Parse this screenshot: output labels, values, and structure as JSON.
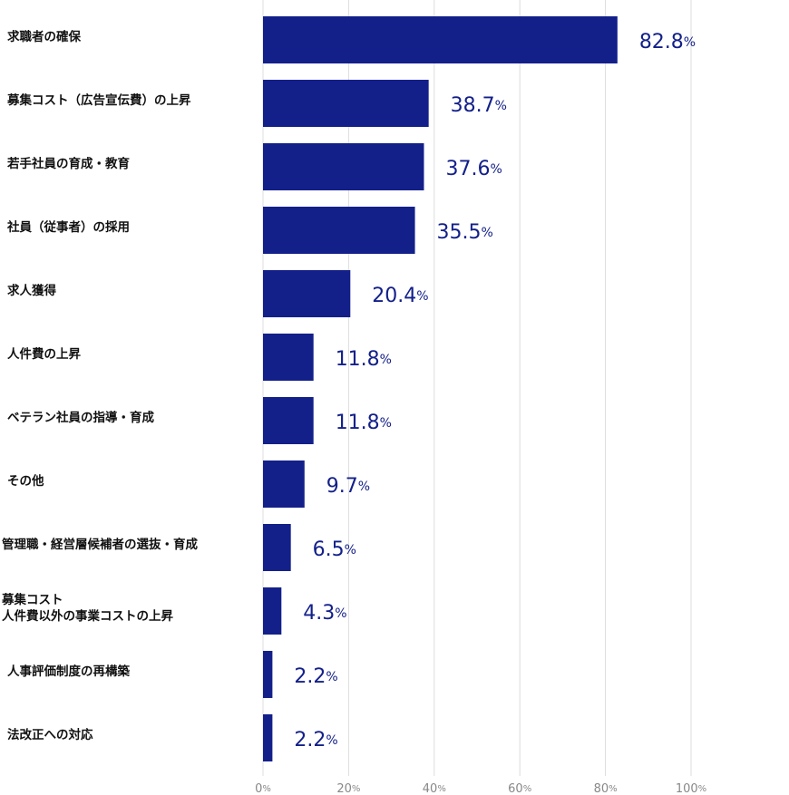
{
  "chart_data": {
    "type": "bar",
    "orientation": "horizontal",
    "color": "#13208a",
    "grid": true,
    "categories": [
      "求職者の確保",
      "募集コスト（広告宣伝費）の上昇",
      "若手社員の育成・教育",
      "社員（従事者）の採用",
      "求人獲得",
      "人件費の上昇",
      "ベテラン社員の指導・育成",
      "その他",
      "管理職・経営層候補者の選抜・育成",
      "募集コスト\n人件費以外の事業コストの上昇",
      "人事評価制度の再構築",
      "法改正への対応"
    ],
    "values": [
      82.8,
      38.7,
      37.6,
      35.5,
      20.4,
      11.8,
      11.8,
      9.7,
      6.5,
      4.3,
      2.2,
      2.2
    ],
    "value_labels": [
      "82.8%",
      "38.7%",
      "37.6%",
      "35.5%",
      "20.4%",
      "11.8%",
      "11.8%",
      "9.7%",
      "6.5%",
      "4.3%",
      "2.2%",
      "2.2%"
    ],
    "xlim": [
      0,
      100
    ],
    "xticks": [
      {
        "value": 0,
        "label": "0%"
      },
      {
        "value": 20,
        "label": "20%"
      },
      {
        "value": 40,
        "label": "40%"
      },
      {
        "value": 60,
        "label": "60%"
      },
      {
        "value": 80,
        "label": "80%"
      },
      {
        "value": 100,
        "label": "100%"
      }
    ]
  }
}
